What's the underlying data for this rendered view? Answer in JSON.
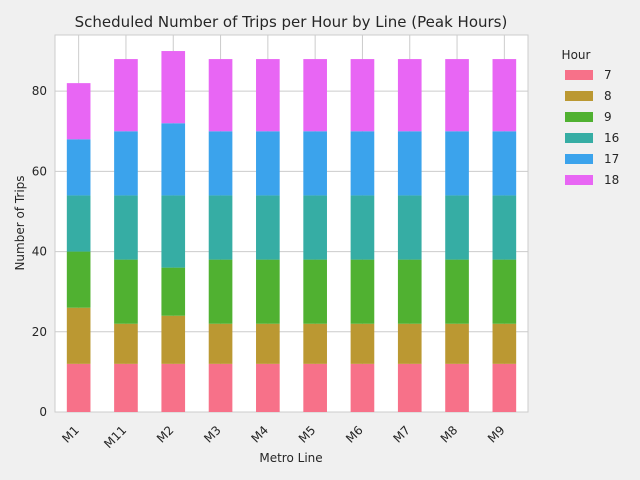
{
  "chart_data": {
    "type": "bar",
    "stacked": true,
    "title": "Scheduled Number of Trips per Hour by Line (Peak Hours)",
    "xlabel": "Metro Line",
    "ylabel": "Number of Trips",
    "categories": [
      "M1",
      "M11",
      "M2",
      "M3",
      "M4",
      "M5",
      "M6",
      "M7",
      "M8",
      "M9"
    ],
    "ylim": [
      0,
      94
    ],
    "yticks": [
      0,
      20,
      40,
      60,
      80
    ],
    "grid": true,
    "legend": {
      "title": "Hour",
      "placement": "outside-top-right"
    },
    "series": [
      {
        "name": "7",
        "color": "#f77189",
        "values": [
          12,
          12,
          12,
          12,
          12,
          12,
          12,
          12,
          12,
          12
        ]
      },
      {
        "name": "8",
        "color": "#bb9832",
        "values": [
          14,
          10,
          12,
          10,
          10,
          10,
          10,
          10,
          10,
          10
        ]
      },
      {
        "name": "9",
        "color": "#50b131",
        "values": [
          14,
          16,
          12,
          16,
          16,
          16,
          16,
          16,
          16,
          16
        ]
      },
      {
        "name": "16",
        "color": "#36ada4",
        "values": [
          14,
          16,
          18,
          16,
          16,
          16,
          16,
          16,
          16,
          16
        ]
      },
      {
        "name": "17",
        "color": "#3ba3ec",
        "values": [
          14,
          16,
          18,
          16,
          16,
          16,
          16,
          16,
          16,
          16
        ]
      },
      {
        "name": "18",
        "color": "#e866f4",
        "values": [
          14,
          18,
          18,
          18,
          18,
          18,
          18,
          18,
          18,
          18
        ]
      }
    ]
  }
}
